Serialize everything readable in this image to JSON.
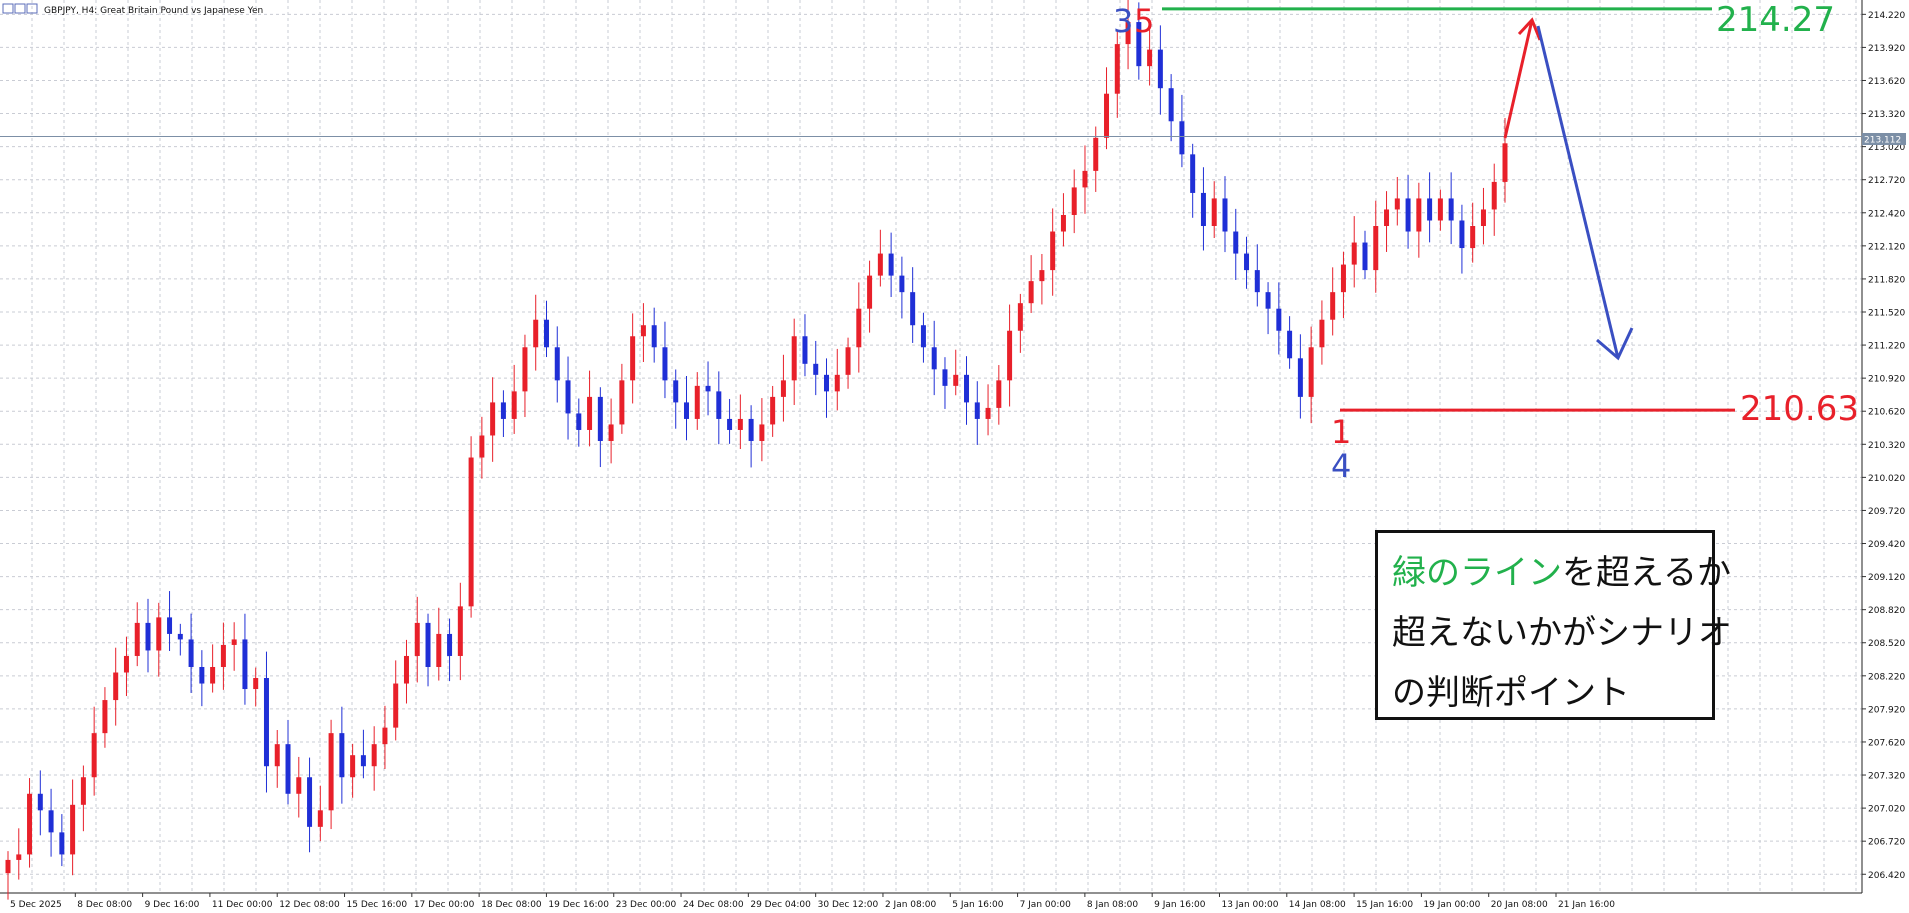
{
  "header": {
    "symbol_line": "GBPJPY, H4:  Great Britain Pound vs Japanese Yen"
  },
  "price_tag": "213.112",
  "levels": {
    "green_label": "214.27",
    "red_label": "210.63"
  },
  "wave_labels": {
    "top_blue": "3",
    "top_red": "5",
    "bottom_red": "1",
    "bottom_blue": "4"
  },
  "note": {
    "line1_green": "緑のライン",
    "line1_rest": "を超えるか",
    "line2": "超えないかがシナリオ",
    "line3": "の判断ポイント"
  },
  "colors": {
    "bull": "#e8202a",
    "bear": "#1f2fd6",
    "green_line": "#22b14c",
    "red_line": "#e8202a",
    "blue_arrow": "#3a4fc2",
    "grid": "#c9ccd4"
  },
  "chart_data": {
    "type": "candlestick",
    "symbol": "GBPJPY",
    "timeframe": "H4",
    "y_axis": {
      "ticks": [
        "214.220",
        "213.920",
        "213.620",
        "213.320",
        "213.020",
        "212.720",
        "212.420",
        "212.120",
        "211.820",
        "211.520",
        "211.220",
        "210.920",
        "210.620",
        "210.320",
        "210.020",
        "209.720",
        "209.420",
        "209.120",
        "208.820",
        "208.520",
        "208.220",
        "207.920",
        "207.620",
        "207.320",
        "207.020",
        "206.720",
        "206.420"
      ],
      "range": [
        206.25,
        214.35
      ]
    },
    "x_axis": {
      "ticks": [
        "5 Dec 2025",
        "8 Dec 08:00",
        "9 Dec 16:00",
        "11 Dec 00:00",
        "12 Dec 08:00",
        "15 Dec 16:00",
        "17 Dec 00:00",
        "18 Dec 08:00",
        "19 Dec 16:00",
        "23 Dec 00:00",
        "24 Dec 08:00",
        "29 Dec 04:00",
        "30 Dec 12:00",
        "2 Jan 08:00",
        "5 Jan 16:00",
        "7 Jan 00:00",
        "8 Jan 08:00",
        "9 Jan 16:00",
        "13 Jan 00:00",
        "14 Jan 08:00",
        "15 Jan 16:00",
        "19 Jan 00:00",
        "20 Jan 08:00",
        "21 Jan 16:00"
      ]
    },
    "current_price": 213.112,
    "levels": [
      {
        "label": "214.27",
        "value": 214.27
      },
      {
        "label": "210.63",
        "value": 210.63
      }
    ],
    "close_path": [
      206.55,
      206.6,
      207.15,
      207.0,
      206.8,
      206.6,
      207.05,
      207.3,
      207.7,
      208.0,
      208.25,
      208.4,
      208.7,
      208.45,
      208.75,
      208.6,
      208.55,
      208.3,
      208.15,
      208.3,
      208.5,
      208.55,
      208.1,
      208.2,
      207.4,
      207.6,
      207.15,
      207.3,
      206.85,
      207.0,
      207.7,
      207.3,
      207.5,
      207.4,
      207.6,
      207.75,
      208.15,
      208.4,
      208.7,
      208.3,
      208.6,
      208.4,
      208.85,
      210.2,
      210.4,
      210.7,
      210.55,
      210.8,
      211.2,
      211.45,
      211.2,
      210.9,
      210.6,
      210.45,
      210.75,
      210.35,
      210.5,
      210.9,
      211.3,
      211.4,
      211.2,
      210.9,
      210.7,
      210.55,
      210.85,
      210.8,
      210.55,
      210.45,
      210.55,
      210.35,
      210.5,
      210.75,
      210.9,
      211.3,
      211.05,
      210.95,
      210.8,
      210.95,
      211.2,
      211.55,
      211.85,
      212.05,
      211.85,
      211.7,
      211.4,
      211.2,
      211.0,
      210.85,
      210.95,
      210.7,
      210.55,
      210.65,
      210.9,
      211.35,
      211.6,
      211.8,
      211.9,
      212.25,
      212.4,
      212.65,
      212.8,
      213.1,
      213.5,
      213.95,
      214.15,
      213.75,
      213.9,
      213.55,
      213.25,
      212.95,
      212.6,
      212.3,
      212.55,
      212.25,
      212.05,
      211.9,
      211.7,
      211.55,
      211.35,
      211.1,
      210.75,
      211.2,
      211.45,
      211.7,
      211.95,
      212.15,
      211.9,
      212.3,
      212.45,
      212.55,
      212.25,
      212.55,
      212.35,
      212.55,
      212.35,
      212.1,
      212.3,
      212.45,
      212.7,
      213.05
    ],
    "annotations": {
      "projection": "rise to the 214.27 line, then decline toward the 210.63 line",
      "wave_marks": [
        "3",
        "5",
        "1",
        "4"
      ]
    }
  }
}
